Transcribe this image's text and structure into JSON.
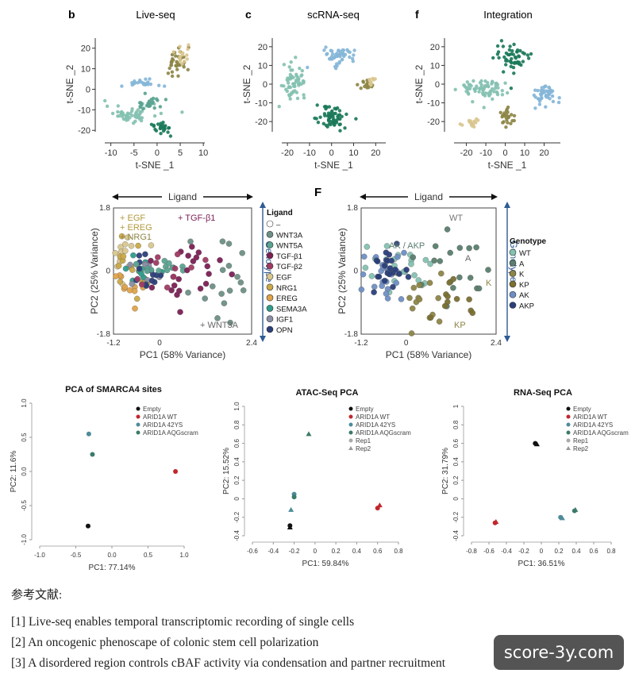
{
  "panels": {
    "b": {
      "letter": "b",
      "title": "Live-seq"
    },
    "c": {
      "letter": "c",
      "title": "scRNA-seq"
    },
    "f": {
      "letter": "f",
      "title": "Integration"
    },
    "F": {
      "letter": "F"
    }
  },
  "colors": {
    "teal_light": "#84c1b1",
    "teal_mid": "#5aa391",
    "teal_dark": "#1b7a59",
    "blue": "#85b6d8",
    "olive": "#8d8547",
    "tan": "#d9c68e",
    "red": "#c0272d",
    "navy": "#2b3f7a",
    "orange": "#dfa24a",
    "purple": "#7b1f55",
    "gray": "#6d8f86"
  },
  "chart_data": [
    {
      "id": "b",
      "type": "scatter",
      "title": "Live-seq",
      "xlabel": "t-SNE _1",
      "ylabel": "t-SNE _2",
      "xlim": [
        -12,
        11
      ],
      "ylim": [
        -23,
        28
      ],
      "xticks": [
        "-10",
        "-5",
        "0",
        "5",
        "10"
      ],
      "yticks": [
        "20",
        "10",
        "0",
        "-10",
        "-20"
      ],
      "clusters": [
        {
          "color": "#84c1b1",
          "cx": -5.5,
          "cy": -12,
          "sx": 2.8,
          "sy": 2.2,
          "n": 55
        },
        {
          "color": "#5aa391",
          "cx": -1.8,
          "cy": -7,
          "sx": 1.5,
          "sy": 1.5,
          "n": 25
        },
        {
          "color": "#85b6d8",
          "cx": -3.5,
          "cy": 3,
          "sx": 2.2,
          "sy": 1,
          "n": 25
        },
        {
          "color": "#8d8547",
          "cx": 4.3,
          "cy": 13,
          "sx": 1.3,
          "sy": 4,
          "n": 35
        },
        {
          "color": "#d9c68e",
          "cx": 5.8,
          "cy": 17,
          "sx": 1.0,
          "sy": 3,
          "n": 15
        },
        {
          "color": "#1b7a59",
          "cx": 1,
          "cy": -19,
          "sx": 1.1,
          "sy": 1.6,
          "n": 25
        }
      ]
    },
    {
      "id": "c",
      "type": "scatter",
      "title": "scRNA-seq",
      "xlabel": "t-SNE _1",
      "ylabel": "t-SNE _2",
      "xlim": [
        -24,
        26
      ],
      "ylim": [
        -28,
        28
      ],
      "xticks": [
        "-20",
        "-10",
        "0",
        "10",
        "20"
      ],
      "yticks": [
        "20",
        "10",
        "0",
        "-10",
        "-20"
      ],
      "clusters": [
        {
          "color": "#84c1b1",
          "cx": -17,
          "cy": 2,
          "sx": 2.5,
          "sy": 4,
          "n": 60
        },
        {
          "color": "#85b6d8",
          "cx": 4,
          "cy": 15,
          "sx": 3.5,
          "sy": 2.5,
          "n": 50
        },
        {
          "color": "#1b7a59",
          "cx": 0,
          "cy": -18,
          "sx": 3.5,
          "sy": 3,
          "n": 65
        },
        {
          "color": "#8d8547",
          "cx": 16,
          "cy": -1,
          "sx": 1.8,
          "sy": 1.5,
          "n": 14
        },
        {
          "color": "#d9c68e",
          "cx": 18,
          "cy": 2,
          "sx": 1.3,
          "sy": 1.3,
          "n": 10
        }
      ]
    },
    {
      "id": "f",
      "type": "scatter",
      "title": "Integration",
      "xlabel": "t-SNE _1",
      "ylabel": "t-SNE _2",
      "xlim": [
        -28,
        30
      ],
      "ylim": [
        -28,
        28
      ],
      "xticks": [
        "-20",
        "-10",
        "0",
        "10",
        "20"
      ],
      "yticks": [
        "20",
        "10",
        "0",
        "-10",
        "-20"
      ],
      "clusters": [
        {
          "color": "#1b7a59",
          "cx": 4,
          "cy": 14,
          "sx": 4.5,
          "sy": 4,
          "n": 55
        },
        {
          "color": "#84c1b1",
          "cx": -11,
          "cy": -3,
          "sx": 6,
          "sy": 3,
          "n": 70
        },
        {
          "color": "#85b6d8",
          "cx": 20,
          "cy": -5,
          "sx": 3.5,
          "sy": 3,
          "n": 45
        },
        {
          "color": "#8d8547",
          "cx": 1,
          "cy": -17,
          "sx": 1.6,
          "sy": 3,
          "n": 25
        },
        {
          "color": "#d9c68e",
          "cx": -17,
          "cy": -21,
          "sx": 2.5,
          "sy": 1.2,
          "n": 15
        }
      ]
    },
    {
      "id": "pca-ligand",
      "type": "scatter",
      "xlabel": "PC1 (58% Variance)",
      "ylabel": "PC2 (25% Variance)",
      "xticks": [
        "-1.2",
        "0",
        "2.4"
      ],
      "yticks": [
        "1.8",
        "0",
        "-1.8"
      ],
      "xlim": [
        -1.2,
        2.4
      ],
      "ylim": [
        -1.8,
        1.8
      ],
      "top_arrow": "Ligand",
      "side_arrow": "Genotype",
      "annotations": [
        "+ EGF",
        "+ EREG",
        "+ NRG1",
        "+ TGF-β1",
        "+ WNT3A"
      ],
      "legend_title": "Ligand",
      "legend": [
        {
          "label": "–",
          "color": "#ffffff"
        },
        {
          "label": "WNT3A",
          "color": "#6d8f86"
        },
        {
          "label": "WNT5A",
          "color": "#5aa391"
        },
        {
          "label": "TGF-β1",
          "color": "#7b1f55"
        },
        {
          "label": "TGF-β2",
          "color": "#a03a62"
        },
        {
          "label": "EGF",
          "color": "#d9c68e"
        },
        {
          "label": "NRG1",
          "color": "#c9a948"
        },
        {
          "label": "EREG",
          "color": "#dfa24a"
        },
        {
          "label": "SEMA3A",
          "color": "#2e9d8c"
        },
        {
          "label": "IGF1",
          "color": "#8a8fa6"
        },
        {
          "label": "OPN",
          "color": "#2b3f7a"
        }
      ]
    },
    {
      "id": "pca-genotype",
      "type": "scatter",
      "xlabel": "PC1 (58% Variance)",
      "ylabel": "PC2 (25% Variance)",
      "xticks": [
        "-1.2",
        "0",
        "2.4"
      ],
      "yticks": [
        "1.8",
        "0",
        "-1.8"
      ],
      "xlim": [
        -1.2,
        2.4
      ],
      "ylim": [
        -1.8,
        1.8
      ],
      "top_arrow": "Ligand",
      "side_arrow": "Genotype",
      "annotations": [
        "WT",
        "AK / AKP",
        "A",
        "K",
        "KP"
      ],
      "legend_title": "Genotype",
      "legend": [
        {
          "label": "WT",
          "color": "#84c1b1"
        },
        {
          "label": "A",
          "color": "#5a7d6e"
        },
        {
          "label": "K",
          "color": "#8d8547"
        },
        {
          "label": "KP",
          "color": "#7a7030"
        },
        {
          "label": "AK",
          "color": "#6f8fc4"
        },
        {
          "label": "AKP",
          "color": "#2b3f7a"
        }
      ]
    },
    {
      "id": "smarca4",
      "type": "scatter",
      "title": "PCA of SMARCA4 sites",
      "xlabel": "PC1: 77.14%",
      "ylabel": "PC2: 11.6%",
      "xlim": [
        -1.0,
        1.0
      ],
      "ylim": [
        -1.0,
        1.0
      ],
      "xticks": [
        "-1.0",
        "-0.5",
        "0.0",
        "0.5",
        "1.0"
      ],
      "yticks": [
        "1.0",
        "0.5",
        "0.0",
        "-0.5",
        "-1.0"
      ],
      "legend": [
        {
          "label": "Empty",
          "color": "#111111"
        },
        {
          "label": "ARID1A WT",
          "color": "#c0272d"
        },
        {
          "label": "ARID1A 42YS",
          "color": "#4f8b9b"
        },
        {
          "label": "ARID1A AQGscram",
          "color": "#3b7a6a"
        }
      ],
      "points": [
        {
          "x": -0.33,
          "y": -0.8,
          "s": 0
        },
        {
          "x": 0.88,
          "y": 0.0,
          "s": 1
        },
        {
          "x": -0.32,
          "y": 0.55,
          "s": 2
        },
        {
          "x": -0.27,
          "y": 0.25,
          "s": 3
        }
      ]
    },
    {
      "id": "atac",
      "type": "scatter",
      "title": "ATAC-Seq PCA",
      "xlabel": "PC1: 59.84%",
      "ylabel": "PC2: 15.52%",
      "xlim": [
        -0.6,
        0.8
      ],
      "ylim": [
        -0.4,
        1.0
      ],
      "xticks": [
        "-0.6",
        "-0.4",
        "-0.2",
        "0",
        "0.2",
        "0.4",
        "0.6",
        "0.8"
      ],
      "yticks": [
        "1.0",
        "0.8",
        "0.6",
        "0.4",
        "0.2",
        "0",
        "-0.2",
        "-0.4"
      ],
      "legend": [
        {
          "label": "Empty",
          "color": "#111111"
        },
        {
          "label": "ARID1A WT",
          "color": "#c0272d"
        },
        {
          "label": "ARID1A 42YS",
          "color": "#4f8b9b"
        },
        {
          "label": "ARID1A AQGscram",
          "color": "#3b7a6a"
        },
        {
          "label": "Rep1",
          "color": "#888888"
        },
        {
          "label": "Rep2",
          "color": "#888888"
        }
      ],
      "points": [
        {
          "x": -0.24,
          "y": -0.29,
          "s": 0,
          "m": "c"
        },
        {
          "x": -0.24,
          "y": -0.31,
          "s": 0,
          "m": "t"
        },
        {
          "x": 0.6,
          "y": -0.1,
          "s": 1,
          "m": "c"
        },
        {
          "x": 0.62,
          "y": -0.07,
          "s": 1,
          "m": "t"
        },
        {
          "x": -0.2,
          "y": 0.05,
          "s": 2,
          "m": "c"
        },
        {
          "x": -0.2,
          "y": 0.02,
          "s": 3,
          "m": "c"
        },
        {
          "x": -0.23,
          "y": -0.12,
          "s": 2,
          "m": "t"
        },
        {
          "x": -0.06,
          "y": 0.7,
          "s": 3,
          "m": "t"
        }
      ]
    },
    {
      "id": "rnaseq",
      "type": "scatter",
      "title": "RNA-Seq PCA",
      "xlabel": "PC1: 36.51%",
      "ylabel": "PC2: 31.79%",
      "xlim": [
        -0.8,
        0.8
      ],
      "ylim": [
        -0.4,
        1.0
      ],
      "xticks": [
        "-0.8",
        "-0.6",
        "-0.4",
        "-0.2",
        "0",
        "0.2",
        "0.4",
        "0.6",
        "0.8"
      ],
      "yticks": [
        "1",
        "0.8",
        "0.6",
        "0.4",
        "0.2",
        "0",
        "-0.2",
        "-0.4"
      ],
      "legend": [
        {
          "label": "Empty",
          "color": "#111111"
        },
        {
          "label": "ARID1A WT",
          "color": "#c0272d"
        },
        {
          "label": "ARID1A 42YS",
          "color": "#4f8b9b"
        },
        {
          "label": "ARID1A AQGscram",
          "color": "#3b7a6a"
        },
        {
          "label": "Rep1",
          "color": "#888888"
        },
        {
          "label": "Rep2",
          "color": "#888888"
        }
      ],
      "points": [
        {
          "x": -0.07,
          "y": 0.6,
          "s": 0,
          "m": "c"
        },
        {
          "x": -0.05,
          "y": 0.59,
          "s": 0,
          "m": "t"
        },
        {
          "x": -0.53,
          "y": -0.26,
          "s": 1,
          "m": "c"
        },
        {
          "x": -0.52,
          "y": -0.25,
          "s": 1,
          "m": "t"
        },
        {
          "x": 0.22,
          "y": -0.2,
          "s": 2,
          "m": "c"
        },
        {
          "x": 0.24,
          "y": -0.21,
          "s": 2,
          "m": "t"
        },
        {
          "x": 0.38,
          "y": -0.13,
          "s": 3,
          "m": "c"
        },
        {
          "x": 0.39,
          "y": -0.12,
          "s": 3,
          "m": "t"
        }
      ]
    }
  ],
  "references": {
    "heading": "参考文献:",
    "items": [
      "[1] Live-seq enables temporal transcriptomic recording of single cells",
      "[2] An oncogenic phenoscape of colonic stem cell polarization",
      "[3] A disordered region controls cBAF activity via condensation and partner recruitment"
    ]
  },
  "watermark": "score-3y.com"
}
